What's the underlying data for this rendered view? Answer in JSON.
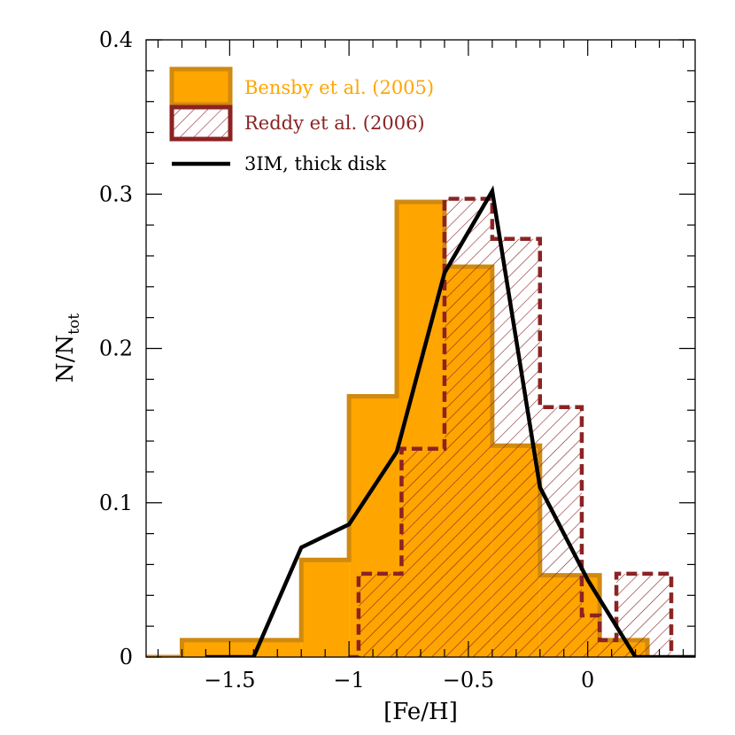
{
  "chart_data": {
    "type": "histogram",
    "xlabel": "[Fe/H]",
    "ylabel": "N/N",
    "ylabel_subscript": "tot",
    "xlim": [
      -1.85,
      0.45
    ],
    "ylim": [
      0,
      0.4
    ],
    "x_ticks": [
      {
        "value": -1.5,
        "label": "−1.5"
      },
      {
        "value": -1.0,
        "label": "−1"
      },
      {
        "value": -0.5,
        "label": "−0.5"
      },
      {
        "value": 0.0,
        "label": "0"
      }
    ],
    "y_ticks": [
      {
        "value": 0.0,
        "label": "0"
      },
      {
        "value": 0.1,
        "label": "0.1"
      },
      {
        "value": 0.2,
        "label": "0.2"
      },
      {
        "value": 0.3,
        "label": "0.3"
      },
      {
        "value": 0.4,
        "label": "0.4"
      }
    ],
    "legend_position": "top-left",
    "series": [
      {
        "name": "Bensby et al. (2005)",
        "style": "filled-step",
        "fill_color": "#FFA500",
        "edge_color": "#D08A10",
        "bin_edges": [
          -1.85,
          -1.7,
          -1.2,
          -1.0,
          -0.8,
          -0.6,
          -0.4,
          -0.2,
          0.05,
          0.25
        ],
        "values": [
          0.0,
          0.011,
          0.063,
          0.169,
          0.295,
          0.253,
          0.137,
          0.053,
          0.011
        ]
      },
      {
        "name": "Reddy et al. (2006)",
        "style": "hatched-dashed-step",
        "edge_color": "#8B2323",
        "bin_edges": [
          -1.0,
          -0.96,
          -0.78,
          -0.6,
          -0.4,
          -0.2,
          -0.025,
          0.05,
          0.12,
          0.35
        ],
        "values": [
          0.0,
          0.054,
          0.135,
          0.297,
          0.271,
          0.162,
          0.027,
          0.011,
          0.054
        ]
      },
      {
        "name": "3IM, thick disk",
        "style": "line",
        "line_color": "#000000",
        "x": [
          -1.6,
          -1.4,
          -1.2,
          -1.0,
          -0.8,
          -0.6,
          -0.4,
          -0.2,
          0.0,
          0.2,
          0.45
        ],
        "y": [
          0.0,
          0.0,
          0.071,
          0.086,
          0.133,
          0.249,
          0.302,
          0.11,
          0.05,
          0.0,
          0.0
        ]
      }
    ]
  }
}
